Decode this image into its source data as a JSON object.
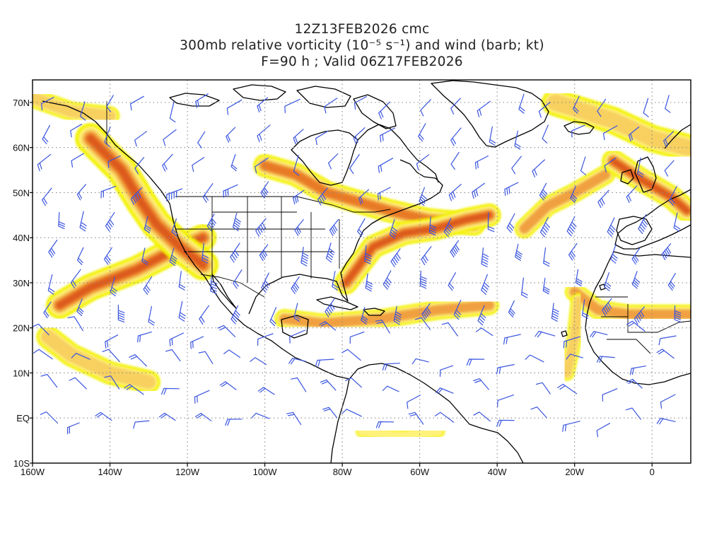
{
  "title": {
    "line1": "12Z13FEB2026 cmc",
    "line2": "300mb relative vorticity (10⁻⁵ s⁻¹) and wind (barb; kt)",
    "line3": "F=90 h ; Valid 06Z17FEB2026"
  },
  "map": {
    "projection": "cylindrical equidistant",
    "lon_range": [
      -160,
      10
    ],
    "lat_range": [
      -10,
      75
    ],
    "x_ticks": [
      {
        "lon": -160,
        "label": "160W"
      },
      {
        "lon": -140,
        "label": "140W"
      },
      {
        "lon": -120,
        "label": "120W"
      },
      {
        "lon": -100,
        "label": "100W"
      },
      {
        "lon": -80,
        "label": "80W"
      },
      {
        "lon": -60,
        "label": "60W"
      },
      {
        "lon": -40,
        "label": "40W"
      },
      {
        "lon": -20,
        "label": "20W"
      },
      {
        "lon": 0,
        "label": "0"
      }
    ],
    "y_ticks": [
      {
        "lat": 70,
        "label": "70N"
      },
      {
        "lat": 60,
        "label": "60N"
      },
      {
        "lat": 50,
        "label": "50N"
      },
      {
        "lat": 40,
        "label": "40N"
      },
      {
        "lat": 30,
        "label": "30N"
      },
      {
        "lat": 20,
        "label": "20N"
      },
      {
        "lat": 10,
        "label": "10N"
      },
      {
        "lat": 0,
        "label": "EQ"
      },
      {
        "lat": -10,
        "label": "10S"
      }
    ],
    "grid": true,
    "colors": {
      "shade_light": "#f2f200",
      "shade_lemon": "#fff27a",
      "shade_gold": "#f7d060",
      "shade_orange": "#f0a040",
      "shade_darkorange": "#e87a28",
      "shade_red": "#dc5a1e",
      "coastline": "#000000",
      "barb": "#3a55e0",
      "grid": "#8a8a8a"
    },
    "vorticity_bands": [
      {
        "name": "pacific-jet",
        "path": [
          [
            -153,
            25
          ],
          [
            -145,
            29
          ],
          [
            -133,
            33
          ],
          [
            -124,
            37
          ],
          [
            -116,
            40
          ]
        ],
        "width_deg": 7,
        "peak": 5
      },
      {
        "name": "west-coast-trough",
        "path": [
          [
            -145,
            62
          ],
          [
            -137,
            55
          ],
          [
            -132,
            48
          ],
          [
            -128,
            43
          ],
          [
            -122,
            38
          ],
          [
            -116,
            34
          ]
        ],
        "width_deg": 8,
        "peak": 6
      },
      {
        "name": "alaska-ridge",
        "path": [
          [
            -160,
            71
          ],
          [
            -150,
            68
          ],
          [
            -140,
            67
          ]
        ],
        "width_deg": 5,
        "peak": 2
      },
      {
        "name": "subtropical-band-pacific",
        "path": [
          [
            -156,
            18
          ],
          [
            -150,
            14
          ],
          [
            -140,
            10
          ],
          [
            -130,
            8
          ]
        ],
        "width_deg": 6,
        "peak": 2
      },
      {
        "name": "central-canada",
        "path": [
          [
            -100,
            56
          ],
          [
            -92,
            54
          ],
          [
            -84,
            50
          ],
          [
            -76,
            48
          ],
          [
            -68,
            46
          ],
          [
            -58,
            44
          ],
          [
            -46,
            43
          ]
        ],
        "width_deg": 6,
        "peak": 4
      },
      {
        "name": "atlantic-jet",
        "path": [
          [
            -79,
            30
          ],
          [
            -72,
            38
          ],
          [
            -64,
            41
          ],
          [
            -56,
            42
          ],
          [
            -48,
            44
          ],
          [
            -42,
            45
          ]
        ],
        "width_deg": 6,
        "peak": 5
      },
      {
        "name": "caribbean-band",
        "path": [
          [
            -95,
            22
          ],
          [
            -85,
            21
          ],
          [
            -70,
            22
          ],
          [
            -55,
            24
          ],
          [
            -42,
            25
          ]
        ],
        "width_deg": 5,
        "peak": 3
      },
      {
        "name": "mid-atlantic-trough",
        "path": [
          [
            -33,
            42
          ],
          [
            -27,
            47
          ],
          [
            -20,
            50
          ],
          [
            -12,
            54
          ]
        ],
        "width_deg": 5,
        "peak": 3
      },
      {
        "name": "european-trough",
        "path": [
          [
            -10,
            57
          ],
          [
            -3,
            53
          ],
          [
            5,
            49
          ],
          [
            9,
            46
          ]
        ],
        "width_deg": 6,
        "peak": 6
      },
      {
        "name": "greenland-sea",
        "path": [
          [
            -25,
            70
          ],
          [
            -10,
            66
          ],
          [
            0,
            62
          ],
          [
            9,
            60
          ]
        ],
        "width_deg": 7,
        "peak": 2
      },
      {
        "name": "sahara-band",
        "path": [
          [
            -20,
            28
          ],
          [
            -14,
            24
          ],
          [
            -6,
            23
          ],
          [
            5,
            23
          ],
          [
            10,
            23
          ]
        ],
        "width_deg": 5,
        "peak": 3
      },
      {
        "name": "west-africa-coast",
        "path": [
          [
            -22,
            10
          ],
          [
            -20,
            18
          ],
          [
            -19,
            26
          ]
        ],
        "width_deg": 4,
        "peak": 2
      },
      {
        "name": "equatorial-patches",
        "path": [
          [
            -75,
            -3
          ],
          [
            -65,
            -4
          ],
          [
            -55,
            -3
          ]
        ],
        "width_deg": 3,
        "peak": 1
      }
    ]
  }
}
